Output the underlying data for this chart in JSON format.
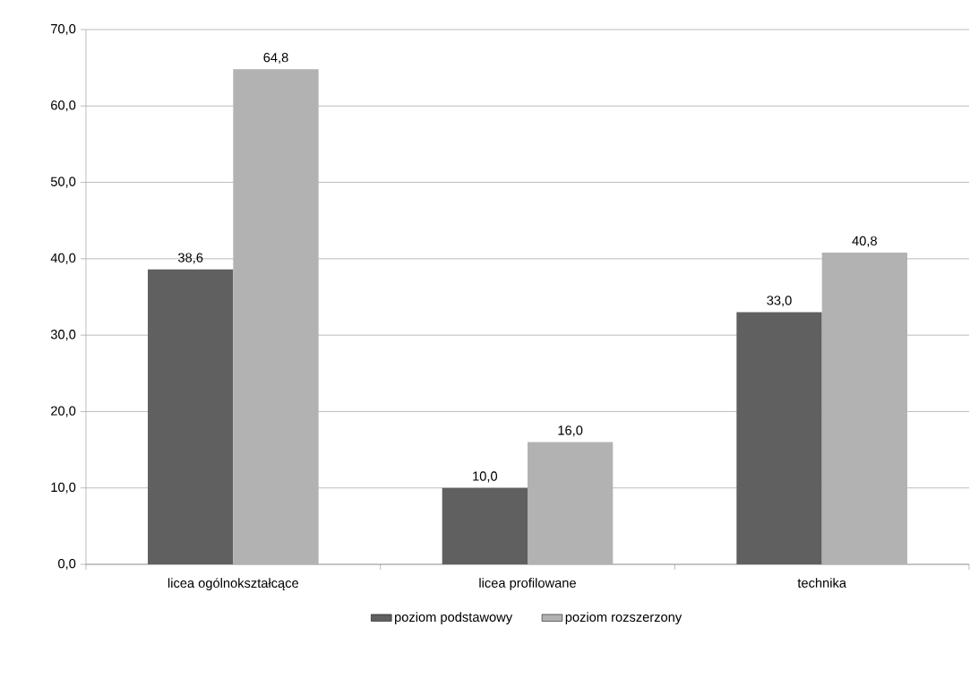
{
  "chart_data": {
    "type": "bar",
    "categories": [
      "licea ogólnokształcące",
      "licea profilowane",
      "technika"
    ],
    "series": [
      {
        "name": "poziom podstawowy",
        "color": "#606060",
        "values": [
          38.6,
          10.0,
          33.0
        ],
        "value_labels": [
          "38,6",
          "10,0",
          "33,0"
        ]
      },
      {
        "name": "poziom rozszerzony",
        "color": "#b2b2b2",
        "values": [
          64.8,
          16.0,
          40.8
        ],
        "value_labels": [
          "64,8",
          "16,0",
          "40,8"
        ]
      }
    ],
    "ylim": [
      0,
      70
    ],
    "yticks": [
      {
        "value": 0,
        "label": "0,0"
      },
      {
        "value": 10,
        "label": "10,0"
      },
      {
        "value": 20,
        "label": "20,0"
      },
      {
        "value": 30,
        "label": "30,0"
      },
      {
        "value": 40,
        "label": "40,0"
      },
      {
        "value": 50,
        "label": "50,0"
      },
      {
        "value": 60,
        "label": "60,0"
      },
      {
        "value": 70,
        "label": "70,0"
      }
    ],
    "grid": "y",
    "legend": "bottom"
  }
}
